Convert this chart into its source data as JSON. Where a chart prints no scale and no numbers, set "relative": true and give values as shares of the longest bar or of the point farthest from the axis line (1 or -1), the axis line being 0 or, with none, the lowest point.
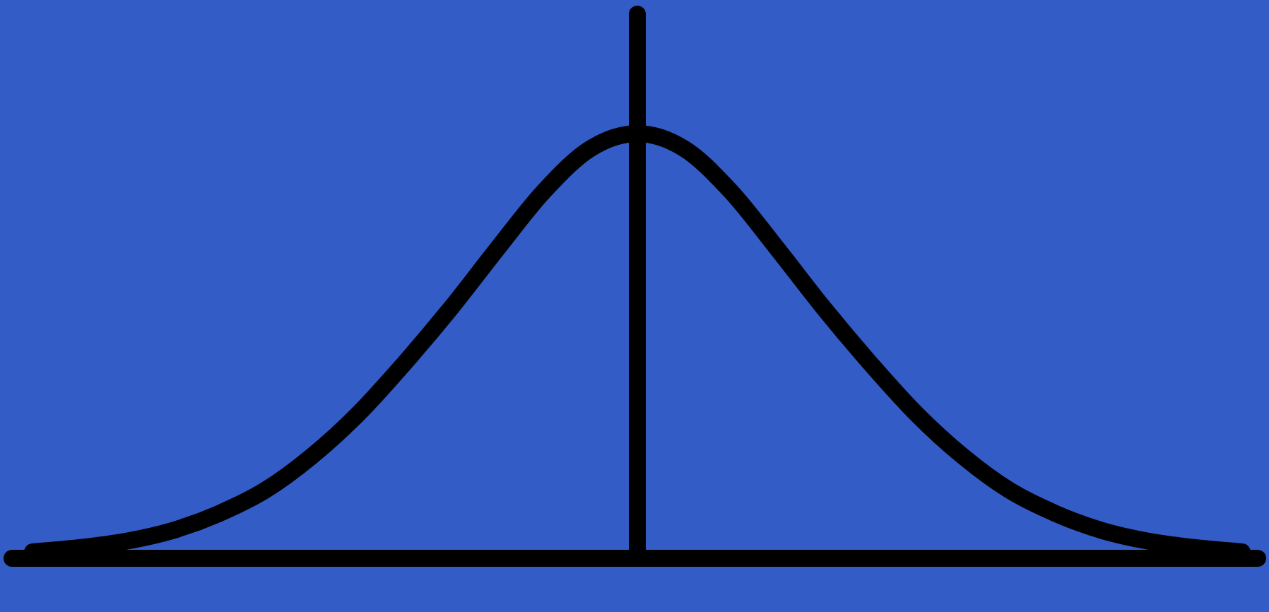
{
  "chart_data": {
    "type": "line",
    "relative": true,
    "categories": [
      null,
      null,
      null,
      null,
      null,
      null,
      null,
      null,
      null,
      null,
      null,
      null,
      null,
      null,
      null,
      null,
      null,
      null,
      null,
      null,
      null,
      null,
      null,
      null,
      null,
      null,
      null
    ],
    "series": [
      {
        "color": "#000000",
        "values": [
          0.015,
          0.025,
          0.04,
          0.065,
          0.105,
          0.16,
          0.24,
          0.34,
          0.46,
          0.59,
          0.73,
          0.865,
          0.965,
          1,
          0.965,
          0.865,
          0.73,
          0.59,
          0.46,
          0.34,
          0.24,
          0.16,
          0.105,
          0.065,
          0.04,
          0.025,
          0.015
        ]
      }
    ],
    "grid": false,
    "line_style": "solid"
  }
}
